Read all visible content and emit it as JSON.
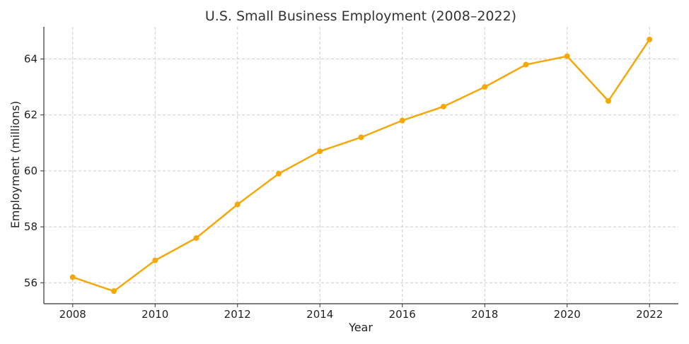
{
  "chart_data": {
    "type": "line",
    "title": "U.S. Small Business Employment (2008–2022)",
    "xlabel": "Year",
    "ylabel": "Employment (millions)",
    "x": [
      2008,
      2009,
      2010,
      2011,
      2012,
      2013,
      2014,
      2015,
      2016,
      2017,
      2018,
      2019,
      2020,
      2021,
      2022
    ],
    "series": [
      {
        "values": [
          56.2,
          55.7,
          56.8,
          57.6,
          58.8,
          59.9,
          60.7,
          61.2,
          61.8,
          62.3,
          63.0,
          63.8,
          64.1,
          62.5,
          64.7
        ],
        "color": "#f5a80a"
      }
    ],
    "xlim": [
      2007.3,
      2022.7
    ],
    "ylim": [
      55.25,
      65.15
    ],
    "xticks": [
      2008,
      2010,
      2012,
      2014,
      2016,
      2018,
      2020,
      2022
    ],
    "yticks": [
      56,
      58,
      60,
      62,
      64
    ],
    "grid": true,
    "legend": "none"
  }
}
